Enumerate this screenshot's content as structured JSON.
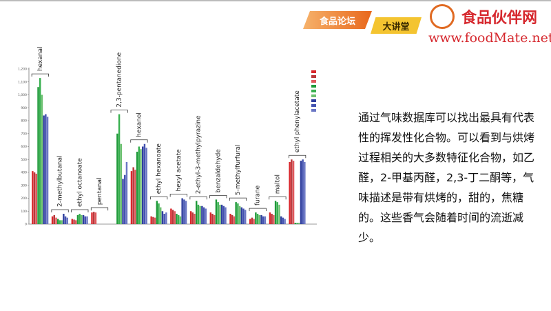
{
  "header": {
    "forum": "食品论坛",
    "lecture": "大讲堂",
    "logo": "食品伙伴网",
    "url": "www.foodMate.net"
  },
  "chart_data": {
    "type": "bar",
    "categories": [
      "hexanal",
      "2-methylbutanal",
      "ethyl octanoate",
      "pentanal",
      "2,3-pentanedione",
      "hexanol",
      "ethyl hexanoate",
      "hexyl acetate",
      "2-ethyl-3-methylpyrazine",
      "benzaldehyde",
      "5-methylfurfural",
      "furane",
      "maltol",
      "ethyl phenylacetate"
    ],
    "series": [
      {
        "color": "#d9262b",
        "values": [
          410,
          60,
          40,
          90,
          0,
          410,
          60,
          120,
          100,
          90,
          80,
          40,
          90,
          480
        ]
      },
      {
        "color": "#b8383b",
        "values": [
          400,
          70,
          35,
          95,
          0,
          440,
          55,
          110,
          90,
          80,
          70,
          50,
          80,
          500
        ]
      },
      {
        "color": "#e0585c",
        "values": [
          390,
          50,
          30,
          90,
          0,
          420,
          50,
          100,
          80,
          70,
          60,
          40,
          70,
          490
        ]
      },
      {
        "color": "#1f9a3a",
        "values": [
          1060,
          40,
          70,
          0,
          700,
          560,
          180,
          80,
          180,
          190,
          170,
          90,
          180,
          10
        ]
      },
      {
        "color": "#38b04f",
        "values": [
          1130,
          30,
          80,
          0,
          850,
          600,
          160,
          70,
          150,
          170,
          160,
          80,
          170,
          10
        ]
      },
      {
        "color": "#6cc070",
        "values": [
          1000,
          30,
          70,
          0,
          620,
          580,
          130,
          60,
          140,
          150,
          140,
          70,
          150,
          10
        ]
      },
      {
        "color": "#2f3e9e",
        "values": [
          840,
          80,
          70,
          0,
          350,
          600,
          100,
          200,
          140,
          150,
          130,
          70,
          60,
          490
        ]
      },
      {
        "color": "#4352b0",
        "values": [
          850,
          60,
          60,
          0,
          380,
          620,
          80,
          190,
          130,
          140,
          120,
          60,
          50,
          500
        ]
      },
      {
        "color": "#6a76c4",
        "values": [
          830,
          50,
          60,
          0,
          480,
          590,
          90,
          180,
          120,
          130,
          110,
          60,
          40,
          480
        ]
      }
    ],
    "ylim": [
      0,
      1200
    ],
    "yticks": [
      0,
      100,
      200,
      300,
      400,
      500,
      600,
      700,
      800,
      900,
      {
        "value": 1000,
        "label": "1,000"
      },
      {
        "value": 1100,
        "label": "1,100"
      },
      {
        "value": 1200,
        "label": "1,200"
      }
    ]
  },
  "text": "通过气味数据库可以找出最具有代表性的挥发性化合物。可以看到与烘烤过程相关的大多数特征化合物，如乙醛，2-甲基丙醛，2,3-丁二酮等，气味描述是带有烘烤的，甜的，焦糖的。这些香气会随着时间的流逝减少。"
}
